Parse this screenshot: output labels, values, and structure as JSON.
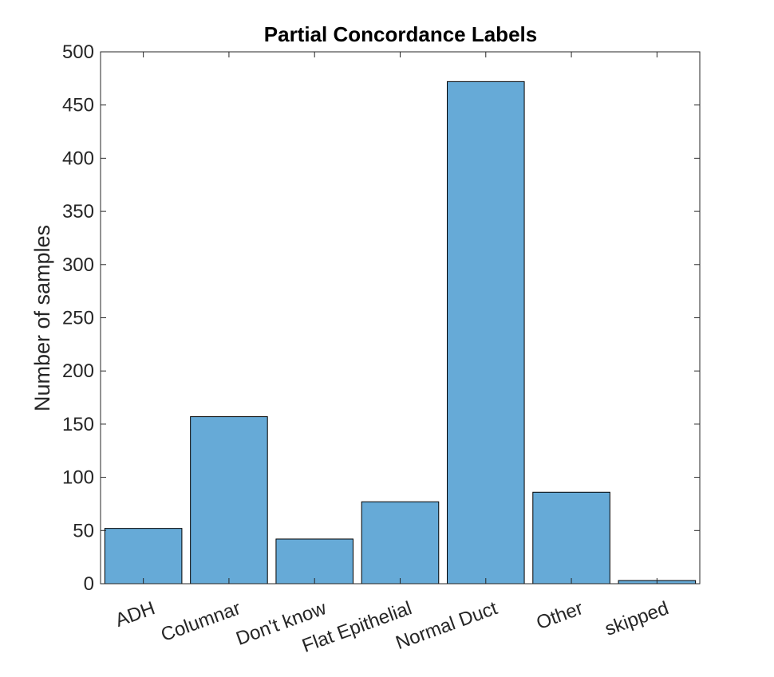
{
  "chart_data": {
    "type": "bar",
    "title": "Partial Concordance Labels",
    "xlabel": "",
    "ylabel": "Number of samples",
    "categories": [
      "ADH",
      "Columnar",
      "Don't know",
      "Flat Epithelial",
      "Normal Duct",
      "Other",
      "skipped"
    ],
    "values": [
      52,
      157,
      42,
      77,
      472,
      86,
      3
    ],
    "ylim": [
      0,
      500
    ],
    "yticks": [
      0,
      50,
      100,
      150,
      200,
      250,
      300,
      350,
      400,
      450,
      500
    ],
    "grid": false,
    "bar_color": "#66aad7"
  }
}
